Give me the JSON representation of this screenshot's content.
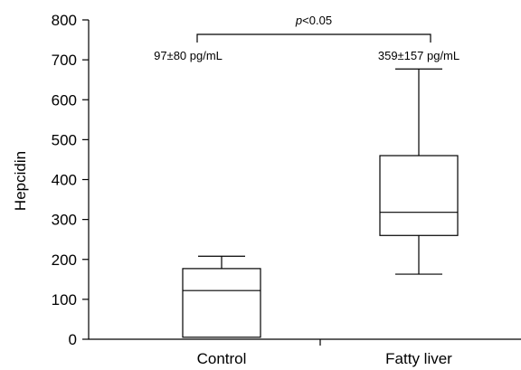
{
  "chart_data": {
    "type": "boxplot",
    "ylabel": "Hepcidin",
    "xlabel": "",
    "ylim": [
      0,
      800
    ],
    "yticks": [
      0,
      100,
      200,
      300,
      400,
      500,
      600,
      700,
      800
    ],
    "categories": [
      "Control",
      "Fatty liver"
    ],
    "boxes": [
      {
        "category": "Control",
        "min": 5,
        "q1": 5,
        "median": 122,
        "q3": 177,
        "max": 208,
        "annotation": "97±80 pg/mL"
      },
      {
        "category": "Fatty liver",
        "min": 163,
        "q1": 260,
        "median": 318,
        "q3": 460,
        "max": 677,
        "annotation": "359±157 pg/mL"
      }
    ],
    "significance": {
      "p_prefix": "p",
      "p_rest": "<0.05",
      "between": [
        "Control",
        "Fatty liver"
      ],
      "bracket_y": 770
    },
    "grid": false,
    "legend": "none",
    "colors": {
      "stroke": "#000000",
      "fill": "#ffffff"
    }
  }
}
